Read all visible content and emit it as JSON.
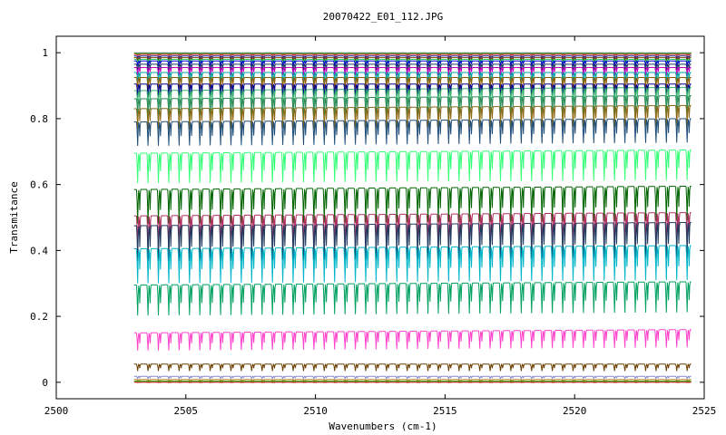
{
  "chart_data": {
    "type": "line",
    "title": "20070422_E01_112.JPG",
    "xlabel": "Wavenumbers (cm-1)",
    "ylabel": "Transmitance",
    "xlim": [
      2500,
      2525
    ],
    "ylim": [
      -0.05,
      1.05
    ],
    "xticks": [
      2500,
      2505,
      2510,
      2515,
      2520,
      2525
    ],
    "xtick_labels": [
      "2500",
      "2505",
      "2510",
      "2515",
      "2520",
      "2525"
    ],
    "yticks": [
      0,
      0.2,
      0.4,
      0.6,
      0.8,
      1
    ],
    "ytick_labels": [
      "0",
      "0.2",
      "0.4",
      "0.6",
      "0.8",
      "1"
    ],
    "grid": false,
    "x_range_of_data": [
      2503,
      2524.5
    ],
    "line_period_cm1": 0.4,
    "series": [
      {
        "baseline": 1.0,
        "depth": 0.004,
        "color": "#7f7f7f"
      },
      {
        "baseline": 0.998,
        "depth": 0.006,
        "color": "#2ca02c"
      },
      {
        "baseline": 0.995,
        "depth": 0.008,
        "color": "#d62728"
      },
      {
        "baseline": 0.99,
        "depth": 0.012,
        "color": "#1f1f8f"
      },
      {
        "baseline": 0.985,
        "depth": 0.016,
        "color": "#7b3f00"
      },
      {
        "baseline": 0.98,
        "depth": 0.02,
        "color": "#2ecc71"
      },
      {
        "baseline": 0.975,
        "depth": 0.024,
        "color": "#0000cc"
      },
      {
        "baseline": 0.965,
        "depth": 0.028,
        "color": "#1e3a5f"
      },
      {
        "baseline": 0.955,
        "depth": 0.032,
        "color": "#c000c0"
      },
      {
        "baseline": 0.94,
        "depth": 0.036,
        "color": "#00a0a0"
      },
      {
        "baseline": 0.925,
        "depth": 0.04,
        "color": "#8b5a00"
      },
      {
        "baseline": 0.905,
        "depth": 0.044,
        "color": "#00008b"
      },
      {
        "baseline": 0.885,
        "depth": 0.048,
        "color": "#3cb371"
      },
      {
        "baseline": 0.86,
        "depth": 0.052,
        "color": "#2e8b57"
      },
      {
        "baseline": 0.83,
        "depth": 0.055,
        "color": "#8b6914"
      },
      {
        "baseline": 0.79,
        "depth": 0.06,
        "color": "#1f4e79"
      },
      {
        "baseline": 0.695,
        "depth": 0.07,
        "color": "#33ff77"
      },
      {
        "baseline": 0.585,
        "depth": 0.08,
        "color": "#006400"
      },
      {
        "baseline": 0.505,
        "depth": 0.085,
        "color": "#b03060"
      },
      {
        "baseline": 0.475,
        "depth": 0.085,
        "color": "#1f3a5f"
      },
      {
        "baseline": 0.405,
        "depth": 0.085,
        "color": "#00b5c8"
      },
      {
        "baseline": 0.295,
        "depth": 0.08,
        "color": "#00a060"
      },
      {
        "baseline": 0.15,
        "depth": 0.04,
        "color": "#ff44cc"
      },
      {
        "baseline": 0.055,
        "depth": 0.012,
        "color": "#6b3f00"
      },
      {
        "baseline": 0.018,
        "depth": 0.004,
        "color": "#8888cc"
      },
      {
        "baseline": 0.008,
        "depth": 0.003,
        "color": "#aa7700"
      },
      {
        "baseline": 0.003,
        "depth": 0.003,
        "color": "#00aa00"
      },
      {
        "baseline": 0.0,
        "depth": 0.003,
        "color": "#cc0000"
      }
    ]
  }
}
